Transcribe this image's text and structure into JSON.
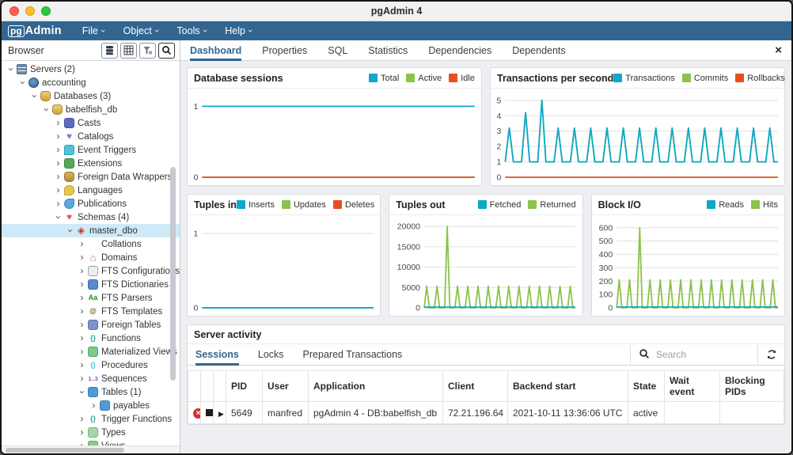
{
  "window": {
    "title": "pgAdmin 4"
  },
  "menu_bar": {
    "logo_pg": "pg",
    "logo_admin": "Admin",
    "items": [
      {
        "label": "File"
      },
      {
        "label": "Object"
      },
      {
        "label": "Tools"
      },
      {
        "label": "Help"
      }
    ]
  },
  "browser_panel": {
    "title": "Browser",
    "toolbar_icons": [
      "object-explorer-icon",
      "grid-view-icon",
      "filter-icon",
      "search-icon"
    ],
    "tree": [
      {
        "label": "Servers (2)",
        "icon": "servers-icon",
        "depth": 0,
        "state": "expanded",
        "selected": false
      },
      {
        "label": "accounting",
        "icon": "pgserver-icon",
        "depth": 1,
        "state": "expanded",
        "selected": false
      },
      {
        "label": "Databases (3)",
        "icon": "db-icon",
        "depth": 2,
        "state": "expanded",
        "selected": false
      },
      {
        "label": "babelfish_db",
        "icon": "db-icon",
        "depth": 3,
        "state": "expanded",
        "selected": false
      },
      {
        "label": "Casts",
        "icon": "casts-icon",
        "depth": 4,
        "state": "collapsed",
        "selected": false
      },
      {
        "label": "Catalogs",
        "icon": "catalogs-icon",
        "depth": 4,
        "state": "collapsed",
        "selected": false
      },
      {
        "label": "Event Triggers",
        "icon": "event-triggers-icon",
        "depth": 4,
        "state": "collapsed",
        "selected": false
      },
      {
        "label": "Extensions",
        "icon": "extensions-icon",
        "depth": 4,
        "state": "collapsed",
        "selected": false
      },
      {
        "label": "Foreign Data Wrappers",
        "icon": "fdw-icon",
        "depth": 4,
        "state": "collapsed",
        "selected": false
      },
      {
        "label": "Languages",
        "icon": "languages-icon",
        "depth": 4,
        "state": "collapsed",
        "selected": false
      },
      {
        "label": "Publications",
        "icon": "publications-icon",
        "depth": 4,
        "state": "collapsed",
        "selected": false
      },
      {
        "label": "Schemas (4)",
        "icon": "schemas-icon",
        "depth": 4,
        "state": "expanded",
        "selected": false
      },
      {
        "label": "master_dbo",
        "icon": "schema-icon",
        "depth": 5,
        "state": "expanded",
        "selected": true
      },
      {
        "label": "Collations",
        "icon": "collations-icon",
        "depth": 6,
        "state": "collapsed",
        "selected": false
      },
      {
        "label": "Domains",
        "icon": "domains-icon",
        "depth": 6,
        "state": "collapsed",
        "selected": false
      },
      {
        "label": "FTS Configurations",
        "icon": "fts-config-icon",
        "depth": 6,
        "state": "collapsed",
        "selected": false
      },
      {
        "label": "FTS Dictionaries",
        "icon": "fts-dict-icon",
        "depth": 6,
        "state": "collapsed",
        "selected": false
      },
      {
        "label": "FTS Parsers",
        "icon": "fts-parsers-icon",
        "depth": 6,
        "state": "collapsed",
        "selected": false
      },
      {
        "label": "FTS Templates",
        "icon": "fts-templates-icon",
        "depth": 6,
        "state": "collapsed",
        "selected": false
      },
      {
        "label": "Foreign Tables",
        "icon": "foreign-tables-icon",
        "depth": 6,
        "state": "collapsed",
        "selected": false
      },
      {
        "label": "Functions",
        "icon": "functions-icon",
        "depth": 6,
        "state": "collapsed",
        "selected": false
      },
      {
        "label": "Materialized Views",
        "icon": "mat-views-icon",
        "depth": 6,
        "state": "collapsed",
        "selected": false
      },
      {
        "label": "Procedures",
        "icon": "procedures-icon",
        "depth": 6,
        "state": "collapsed",
        "selected": false
      },
      {
        "label": "Sequences",
        "icon": "sequences-icon",
        "depth": 6,
        "state": "collapsed",
        "selected": false
      },
      {
        "label": "Tables (1)",
        "icon": "table-icon",
        "depth": 6,
        "state": "expanded",
        "selected": false
      },
      {
        "label": "payables",
        "icon": "table-icon",
        "depth": 7,
        "state": "collapsed",
        "selected": false
      },
      {
        "label": "Trigger Functions",
        "icon": "trigger-functions-icon",
        "depth": 6,
        "state": "collapsed",
        "selected": false
      },
      {
        "label": "Types",
        "icon": "types-icon",
        "depth": 6,
        "state": "collapsed",
        "selected": false
      },
      {
        "label": "Views",
        "icon": "views-icon",
        "depth": 6,
        "state": "collapsed",
        "selected": false
      }
    ]
  },
  "main_tabs": {
    "tabs": [
      {
        "label": "Dashboard",
        "active": true
      },
      {
        "label": "Properties",
        "active": false
      },
      {
        "label": "SQL",
        "active": false
      },
      {
        "label": "Statistics",
        "active": false
      },
      {
        "label": "Dependencies",
        "active": false
      },
      {
        "label": "Dependents",
        "active": false
      }
    ],
    "close_label": "×"
  },
  "chart_data": [
    {
      "type": "line",
      "title": "Database sessions",
      "ylim": [
        0,
        1.15
      ],
      "yticks": [
        0,
        1
      ],
      "legend_position": "top-right",
      "grid": true,
      "series": [
        {
          "name": "Total",
          "color": "#0ea8c9",
          "z": 3,
          "flat": 1,
          "n": 60
        },
        {
          "name": "Active",
          "color": "#8bc34a",
          "z": 1,
          "flat": 0,
          "n": 60
        },
        {
          "name": "Idle",
          "color": "#e5501e",
          "z": 2,
          "flat": 0,
          "n": 60
        }
      ]
    },
    {
      "type": "line",
      "title": "Transactions per second",
      "ylim": [
        0,
        5.3
      ],
      "yticks": [
        0,
        1,
        2,
        3,
        4,
        5
      ],
      "legend_position": "top-right",
      "grid": true,
      "series": [
        {
          "name": "Transactions",
          "color": "#0ea8c9",
          "z": 3,
          "values": [
            1,
            3.2,
            1,
            1,
            1,
            4.2,
            1,
            1,
            1,
            5,
            1,
            1,
            1,
            3.2,
            1,
            1,
            1,
            3.2,
            1,
            1,
            1,
            3.2,
            1,
            1,
            1,
            3.2,
            1,
            1,
            1,
            3.2,
            1,
            1,
            1,
            3.2,
            1,
            1,
            1,
            3.2,
            1,
            1,
            1,
            3.2,
            1,
            1,
            1,
            3.2,
            1,
            1,
            1,
            3.2,
            1,
            1,
            1,
            3.2,
            1,
            1,
            1,
            3.2,
            1,
            1,
            1,
            3.2,
            1,
            1,
            1,
            3.2,
            1,
            1
          ]
        },
        {
          "name": "Commits",
          "color": "#8bc34a",
          "z": 1,
          "values": [
            1,
            3.2,
            1,
            1,
            1,
            4.2,
            1,
            1,
            1,
            5,
            1,
            1,
            1,
            3.2,
            1,
            1,
            1,
            3.2,
            1,
            1,
            1,
            3.2,
            1,
            1,
            1,
            3.2,
            1,
            1,
            1,
            3.2,
            1,
            1,
            1,
            3.2,
            1,
            1,
            1,
            3.2,
            1,
            1,
            1,
            3.2,
            1,
            1,
            1,
            3.2,
            1,
            1,
            1,
            3.2,
            1,
            1,
            1,
            3.2,
            1,
            1,
            1,
            3.2,
            1,
            1,
            1,
            3.2,
            1,
            1,
            1,
            3.2,
            1,
            1
          ]
        },
        {
          "name": "Rollbacks",
          "color": "#e5501e",
          "z": 2,
          "flat": 0,
          "n": 68
        }
      ]
    },
    {
      "type": "line",
      "title": "Tuples in",
      "ylim": [
        0,
        1.15
      ],
      "yticks": [
        0,
        1
      ],
      "legend_position": "top-right",
      "grid": true,
      "series": [
        {
          "name": "Inserts",
          "color": "#0ea8c9",
          "z": 3,
          "flat": 0,
          "n": 60
        },
        {
          "name": "Updates",
          "color": "#8bc34a",
          "z": 2,
          "flat": 0,
          "n": 60
        },
        {
          "name": "Deletes",
          "color": "#e5501e",
          "z": 1,
          "flat": 0,
          "n": 60
        }
      ]
    },
    {
      "type": "line",
      "title": "Tuples out",
      "ylim": [
        0,
        21000
      ],
      "yticks": [
        0,
        5000,
        10000,
        15000,
        20000
      ],
      "legend_position": "top-right",
      "grid": true,
      "series": [
        {
          "name": "Fetched",
          "color": "#0ea8c9",
          "z": 2,
          "flat": 150,
          "n": 60
        },
        {
          "name": "Returned",
          "color": "#8bc34a",
          "z": 1,
          "values": [
            0,
            5300,
            0,
            0,
            0,
            5300,
            0,
            0,
            0,
            20000,
            0,
            0,
            0,
            5300,
            0,
            0,
            0,
            5300,
            0,
            0,
            0,
            5300,
            0,
            0,
            0,
            5300,
            0,
            0,
            0,
            5300,
            0,
            0,
            0,
            5300,
            0,
            0,
            0,
            5300,
            0,
            0,
            0,
            5300,
            0,
            0,
            0,
            5300,
            0,
            0,
            0,
            5300,
            0,
            0,
            0,
            5300,
            0,
            0,
            0,
            5300,
            0,
            0
          ]
        }
      ]
    },
    {
      "type": "line",
      "title": "Block I/O",
      "ylim": [
        0,
        640
      ],
      "yticks": [
        0,
        100,
        200,
        300,
        400,
        500,
        600
      ],
      "legend_position": "top-right",
      "grid": true,
      "series": [
        {
          "name": "Reads",
          "color": "#0ea8c9",
          "z": 2,
          "flat": 6,
          "n": 64
        },
        {
          "name": "Hits",
          "color": "#8bc34a",
          "z": 1,
          "values": [
            0,
            210,
            0,
            0,
            0,
            210,
            0,
            0,
            0,
            600,
            0,
            0,
            0,
            210,
            0,
            0,
            0,
            210,
            0,
            0,
            0,
            210,
            0,
            0,
            0,
            210,
            0,
            0,
            0,
            210,
            0,
            0,
            0,
            210,
            0,
            0,
            0,
            210,
            0,
            0,
            0,
            210,
            0,
            0,
            0,
            210,
            0,
            0,
            0,
            210,
            0,
            0,
            0,
            210,
            0,
            0,
            0,
            210,
            0,
            0,
            0,
            210,
            0,
            0
          ]
        }
      ]
    }
  ],
  "server_activity": {
    "title": "Server activity",
    "tabs": [
      {
        "label": "Sessions",
        "active": true
      },
      {
        "label": "Locks",
        "active": false
      },
      {
        "label": "Prepared Transactions",
        "active": false
      }
    ],
    "search": {
      "placeholder": "Search",
      "icon": "search-icon"
    },
    "refresh_icon": "refresh-icon",
    "table": {
      "columns": [
        "",
        "",
        "",
        "PID",
        "User",
        "Application",
        "Client",
        "Backend start",
        "State",
        "Wait event",
        "Blocking PIDs"
      ],
      "rows": [
        {
          "controls": [
            "terminate-icon",
            "cancel-query-icon",
            "expand-row-icon"
          ],
          "cells": [
            "5649",
            "manfred",
            "pgAdmin 4 - DB:babelfish_db",
            "72.21.196.64",
            "2021-10-11 13:36:06 UTC",
            "active",
            "",
            ""
          ]
        }
      ]
    }
  },
  "colors": {
    "accent_blue": "#326690",
    "chart_cyan": "#0ea8c9",
    "chart_green": "#8bc34a",
    "chart_red": "#e5501e",
    "tree_selection": "#cfe9f8"
  }
}
